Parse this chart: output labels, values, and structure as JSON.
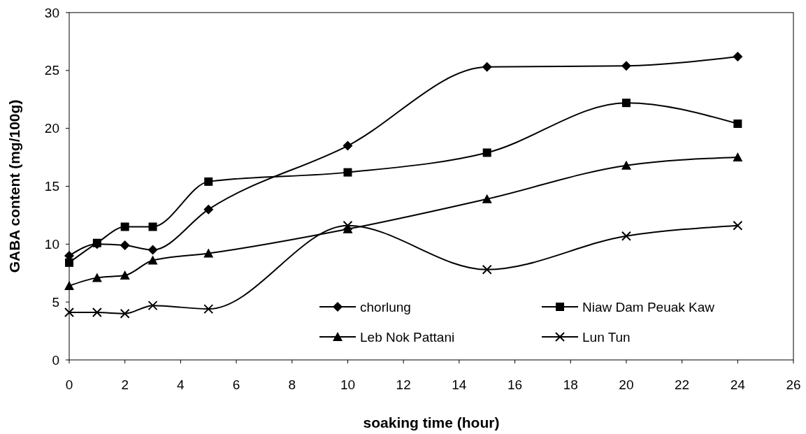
{
  "chart_data": {
    "type": "line",
    "xlabel": "soaking time (hour)",
    "ylabel": "GABA content (mg/100g)",
    "x": [
      0,
      1,
      2,
      3,
      5,
      10,
      15,
      20,
      24
    ],
    "series": [
      {
        "name": "chorlung",
        "color": "#000000",
        "marker": "diamond",
        "values": [
          9.0,
          10.0,
          9.9,
          9.5,
          13.0,
          18.5,
          25.3,
          25.4,
          26.2
        ]
      },
      {
        "name": "Niaw Dam Peuak Kaw",
        "color": "#000000",
        "marker": "square",
        "values": [
          8.4,
          10.1,
          11.5,
          11.5,
          15.4,
          16.2,
          17.9,
          22.2,
          20.4
        ]
      },
      {
        "name": "Leb Nok Pattani",
        "color": "#000000",
        "marker": "triangle",
        "values": [
          6.4,
          7.1,
          7.3,
          8.6,
          9.2,
          11.3,
          13.9,
          16.8,
          17.5
        ]
      },
      {
        "name": "Lun Tun",
        "color": "#000000",
        "marker": "cross",
        "values": [
          4.1,
          4.1,
          4.0,
          4.7,
          4.4,
          11.6,
          7.8,
          10.7,
          11.6
        ]
      }
    ],
    "xlim": [
      0,
      26
    ],
    "xticks": [
      0,
      2,
      4,
      6,
      8,
      10,
      12,
      14,
      16,
      18,
      20,
      22,
      24,
      26
    ],
    "ylim": [
      0,
      30
    ],
    "yticks": [
      0,
      5,
      10,
      15,
      20,
      25,
      30
    ],
    "grid": false,
    "legend": "bottom right",
    "line_style": "solid"
  }
}
